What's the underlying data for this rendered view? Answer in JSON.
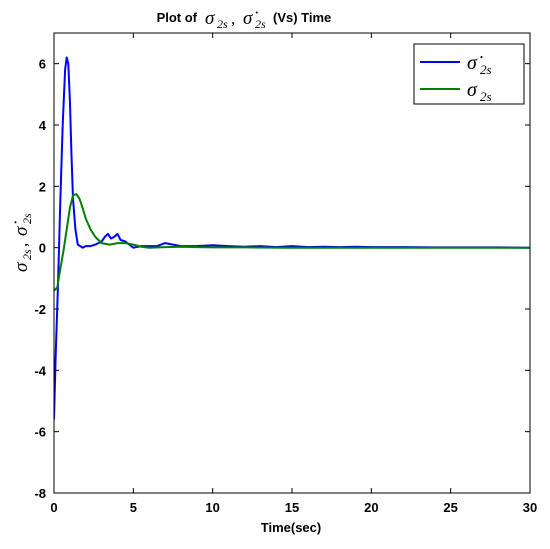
{
  "chart_data": {
    "type": "line",
    "title": {
      "prefix": "Plot of",
      "sym1": "σ",
      "sym1_sub": "2s",
      "sep": ", ",
      "sym2": "σ̇",
      "sym2_sub": "2s",
      "suffix": "(Vs) Time"
    },
    "xlabel": "Time(sec)",
    "ylabel": {
      "sym1": "σ",
      "sym1_sub": "2s",
      "sep": ", ",
      "sym2": "σ̇",
      "sym2_sub": "2s"
    },
    "xlim": [
      0,
      30
    ],
    "ylim": [
      -8,
      7
    ],
    "x_ticks": [
      0,
      5,
      10,
      15,
      20,
      25,
      30
    ],
    "y_ticks": [
      -8,
      -6,
      -4,
      -2,
      0,
      2,
      4,
      6
    ],
    "legend_position": "top-right",
    "series": [
      {
        "name": {
          "sym": "σ̇",
          "sub": "2s"
        },
        "color": "#0000ff",
        "x": [
          0.0,
          0.1,
          0.25,
          0.4,
          0.55,
          0.7,
          0.8,
          0.9,
          1.0,
          1.1,
          1.2,
          1.35,
          1.5,
          1.65,
          1.8,
          2.0,
          2.3,
          2.6,
          3.0,
          3.2,
          3.4,
          3.6,
          3.8,
          4.0,
          4.2,
          4.5,
          5.0,
          5.5,
          6.0,
          6.5,
          7.0,
          7.5,
          8.0,
          9.0,
          10.0,
          11.0,
          12.0,
          13.0,
          14.0,
          15.0,
          16.0,
          17.0,
          18.0,
          19.0,
          20.0,
          22.0,
          24.0,
          26.0,
          28.0,
          30.0
        ],
        "y": [
          -5.6,
          -3.6,
          -1.2,
          1.5,
          4.0,
          5.8,
          6.2,
          6.0,
          4.8,
          3.0,
          1.6,
          0.6,
          0.1,
          0.05,
          0.0,
          0.05,
          0.05,
          0.1,
          0.2,
          0.35,
          0.45,
          0.3,
          0.35,
          0.45,
          0.25,
          0.2,
          0.0,
          0.05,
          0.05,
          0.05,
          0.15,
          0.1,
          0.05,
          0.05,
          0.08,
          0.05,
          0.03,
          0.05,
          0.02,
          0.05,
          0.02,
          0.03,
          0.02,
          0.03,
          0.02,
          0.02,
          0.01,
          0.01,
          0.01,
          0.0
        ]
      },
      {
        "name": {
          "sym": "σ",
          "sub": "2s"
        },
        "color": "#008000",
        "x": [
          0.0,
          0.2,
          0.4,
          0.6,
          0.8,
          1.0,
          1.2,
          1.4,
          1.6,
          1.8,
          2.0,
          2.3,
          2.6,
          3.0,
          3.5,
          4.0,
          4.5,
          5.0,
          5.5,
          6.0,
          7.0,
          8.0,
          9.0,
          10.0,
          12.0,
          15.0,
          20.0,
          25.0,
          30.0
        ],
        "y": [
          -1.4,
          -1.3,
          -0.7,
          -0.1,
          0.6,
          1.3,
          1.7,
          1.75,
          1.6,
          1.3,
          0.95,
          0.6,
          0.35,
          0.15,
          0.1,
          0.15,
          0.15,
          0.1,
          0.03,
          0.0,
          0.02,
          0.03,
          0.02,
          0.01,
          0.01,
          0.0,
          0.0,
          0.0,
          0.0
        ]
      }
    ]
  }
}
